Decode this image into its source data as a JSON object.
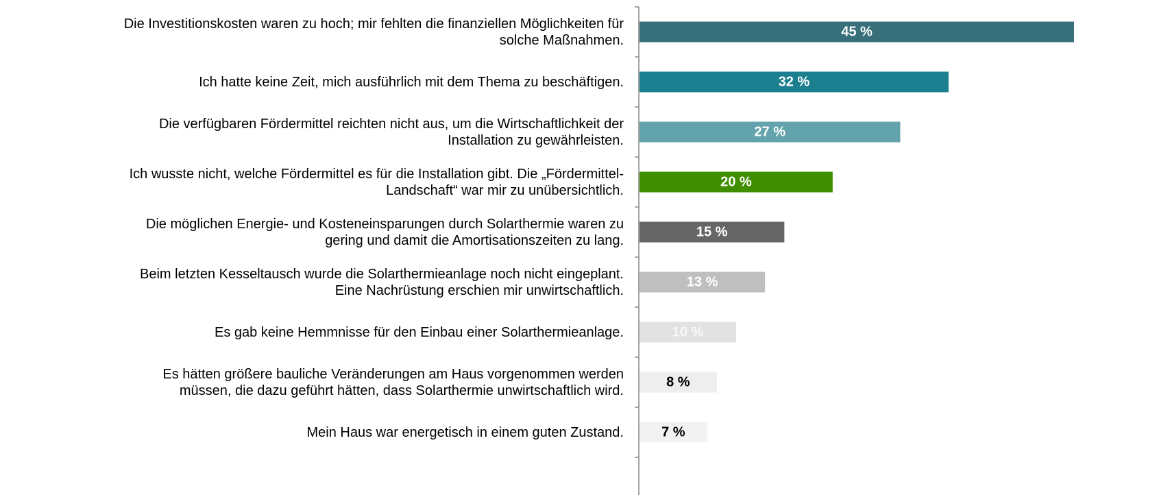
{
  "chart_data": {
    "type": "barh",
    "categories": [
      "Die Investitionskosten waren zu hoch; mir fehlten die finanziellen Möglichkeiten für\nsolche Maßnahmen.",
      "Ich hatte keine Zeit, mich ausführlich mit dem Thema zu beschäftigen.",
      "Die verfügbaren Fördermittel reichten nicht aus, um die Wirtschaftlichkeit der\nInstallation zu gewährleisten.",
      "Ich wusste nicht, welche Fördermittel es für die Installation gibt. Die „Fördermittel-\nLandschaft“ war mir zu unübersichtlich.",
      "Die möglichen Energie- und Kosteneinsparungen durch Solarthermie waren zu\ngering und damit die Amortisationszeiten zu lang.",
      "Beim letzten Kesseltausch wurde die Solarthermieanlage noch nicht eingeplant.\nEine Nachrüstung erschien mir unwirtschaftlich.",
      "Es gab keine Hemmnisse für den Einbau einer Solarthermieanlage.",
      "Es hätten größere bauliche Veränderungen am Haus vorgenommen werden\nmüssen, die dazu geführt hätten, dass Solarthermie unwirtschaftlich wird.",
      "Mein Haus war energetisch in einem guten Zustand."
    ],
    "values": [
      45,
      32,
      27,
      20,
      15,
      13,
      10,
      8,
      7
    ],
    "value_labels": [
      "45 %",
      "32 %",
      "27 %",
      "20 %",
      "15 %",
      "13 %",
      "10 %",
      "8 %",
      "7 %"
    ],
    "colors": [
      "#37707a",
      "#1b7f8f",
      "#62a3ad",
      "#3f8e00",
      "#666666",
      "#bfbfbf",
      "#e2e2e2",
      "#eeeeee",
      "#f2f2f2"
    ],
    "label_colors": [
      "#ffffff",
      "#ffffff",
      "#ffffff",
      "#ffffff",
      "#ffffff",
      "#ffffff",
      "#f7f7f7",
      "#000000",
      "#000000"
    ]
  }
}
